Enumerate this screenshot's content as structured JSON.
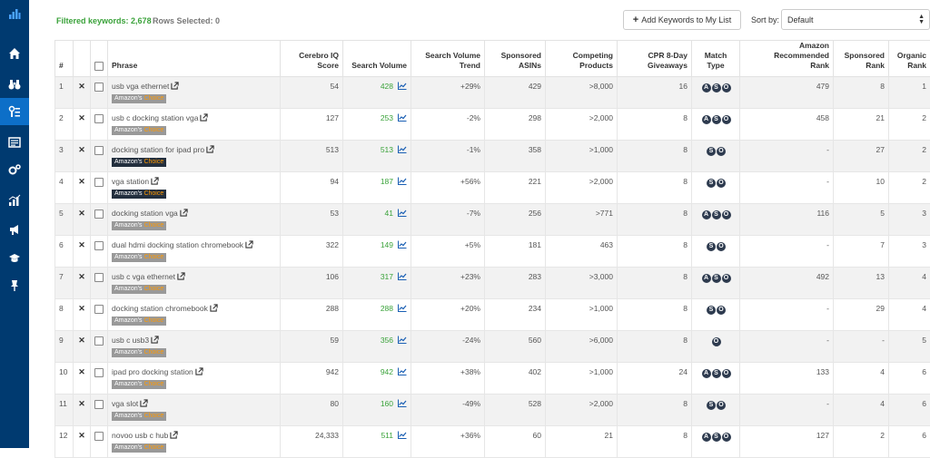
{
  "summary": {
    "filtered_label": "Filtered keywords:",
    "filtered_count": "2,678",
    "rows_selected_label": "Rows Selected:",
    "rows_selected_count": "0"
  },
  "toolbar": {
    "add_keywords_label": "Add Keywords to My List",
    "sort_label": "Sort by:",
    "sort_value": "Default"
  },
  "table": {
    "headers": {
      "num": "#",
      "phrase": "Phrase",
      "cerebro_line1": "Cerebro IQ",
      "cerebro_line2": "Score",
      "search_volume": "Search Volume",
      "trend_line1": "Search Volume",
      "trend_line2": "Trend",
      "sponsored_asins_line1": "Sponsored",
      "sponsored_asins_line2": "ASINs",
      "competing_line1": "Competing",
      "competing_line2": "Products",
      "cpr_line1": "CPR 8-Day",
      "cpr_line2": "Giveaways",
      "match_line1": "Match",
      "match_line2": "Type",
      "amazon_rank_line1": "Amazon Recommended",
      "amazon_rank_line2": "Rank",
      "sponsored_rank_line1": "Sponsored",
      "sponsored_rank_line2": "Rank",
      "organic_line1": "Organic",
      "organic_line2": "Rank"
    },
    "badge_prefix": "Amazon's",
    "badge_suffix": "Choice",
    "rows": [
      {
        "num": "1",
        "phrase": "usb vga ethernet",
        "badge": "gray",
        "cerebro": "54",
        "volume": "428",
        "trend": "+29%",
        "trend_dir": "pos",
        "sponsored_asins": "429",
        "competing": ">8,000",
        "cpr": "16",
        "match": [
          "A",
          "S",
          "O"
        ],
        "amazon_rank": "479",
        "sponsored_rank": "8",
        "organic_rank": "1"
      },
      {
        "num": "2",
        "phrase": "usb c docking station vga",
        "badge": "gray",
        "cerebro": "127",
        "volume": "253",
        "trend": "-2%",
        "trend_dir": "neg",
        "sponsored_asins": "298",
        "competing": ">2,000",
        "cpr": "8",
        "match": [
          "A",
          "S",
          "O"
        ],
        "amazon_rank": "458",
        "sponsored_rank": "21",
        "organic_rank": "2"
      },
      {
        "num": "3",
        "phrase": "docking station for ipad pro",
        "badge": "dark",
        "cerebro": "513",
        "volume": "513",
        "trend": "-1%",
        "trend_dir": "neg",
        "sponsored_asins": "358",
        "competing": ">1,000",
        "cpr": "8",
        "match": [
          "S",
          "O"
        ],
        "amazon_rank": "-",
        "sponsored_rank": "27",
        "organic_rank": "2"
      },
      {
        "num": "4",
        "phrase": "vga station",
        "badge": "dark",
        "cerebro": "94",
        "volume": "187",
        "trend": "+56%",
        "trend_dir": "pos",
        "sponsored_asins": "221",
        "competing": ">2,000",
        "cpr": "8",
        "match": [
          "S",
          "O"
        ],
        "amazon_rank": "-",
        "sponsored_rank": "10",
        "organic_rank": "2"
      },
      {
        "num": "5",
        "phrase": "docking station vga",
        "badge": "gray",
        "cerebro": "53",
        "volume": "41",
        "trend": "-7%",
        "trend_dir": "neg",
        "sponsored_asins": "256",
        "competing": ">771",
        "cpr": "8",
        "match": [
          "A",
          "S",
          "O"
        ],
        "amazon_rank": "116",
        "sponsored_rank": "5",
        "organic_rank": "3"
      },
      {
        "num": "6",
        "phrase": "dual hdmi docking station chromebook",
        "badge": "gray",
        "cerebro": "322",
        "volume": "149",
        "trend": "+5%",
        "trend_dir": "pos",
        "sponsored_asins": "181",
        "competing": "463",
        "cpr": "8",
        "match": [
          "S",
          "O"
        ],
        "amazon_rank": "-",
        "sponsored_rank": "7",
        "organic_rank": "3"
      },
      {
        "num": "7",
        "phrase": "usb c vga ethernet",
        "badge": "gray",
        "cerebro": "106",
        "volume": "317",
        "trend": "+23%",
        "trend_dir": "pos",
        "sponsored_asins": "283",
        "competing": ">3,000",
        "cpr": "8",
        "match": [
          "A",
          "S",
          "O"
        ],
        "amazon_rank": "492",
        "sponsored_rank": "13",
        "organic_rank": "4"
      },
      {
        "num": "8",
        "phrase": "docking station chromebook",
        "badge": "gray",
        "cerebro": "288",
        "volume": "288",
        "trend": "+20%",
        "trend_dir": "pos",
        "sponsored_asins": "234",
        "competing": ">1,000",
        "cpr": "8",
        "match": [
          "S",
          "O"
        ],
        "amazon_rank": "-",
        "sponsored_rank": "29",
        "organic_rank": "4"
      },
      {
        "num": "9",
        "phrase": "usb c usb3",
        "badge": "gray",
        "cerebro": "59",
        "volume": "356",
        "trend": "-24%",
        "trend_dir": "neg",
        "sponsored_asins": "560",
        "competing": ">6,000",
        "cpr": "8",
        "match": [
          "O"
        ],
        "amazon_rank": "-",
        "sponsored_rank": "-",
        "organic_rank": "5"
      },
      {
        "num": "10",
        "phrase": "ipad pro docking station",
        "badge": "gray",
        "cerebro": "942",
        "volume": "942",
        "trend": "+38%",
        "trend_dir": "pos",
        "sponsored_asins": "402",
        "competing": ">1,000",
        "cpr": "24",
        "match": [
          "A",
          "S",
          "O"
        ],
        "amazon_rank": "133",
        "sponsored_rank": "4",
        "organic_rank": "6"
      },
      {
        "num": "11",
        "phrase": "vga slot",
        "badge": "gray",
        "cerebro": "80",
        "volume": "160",
        "trend": "-49%",
        "trend_dir": "neg",
        "sponsored_asins": "528",
        "competing": ">2,000",
        "cpr": "8",
        "match": [
          "S",
          "O"
        ],
        "amazon_rank": "-",
        "sponsored_rank": "4",
        "organic_rank": "6"
      },
      {
        "num": "12",
        "phrase": "novoo usb c hub",
        "badge": "gray",
        "cerebro": "24,333",
        "volume": "511",
        "trend": "+36%",
        "trend_dir": "pos",
        "sponsored_asins": "60",
        "competing": "21",
        "cpr": "8",
        "match": [
          "A",
          "S",
          "O"
        ],
        "amazon_rank": "127",
        "sponsored_rank": "2",
        "organic_rank": "6"
      }
    ]
  },
  "sidebar": {
    "items": [
      {
        "icon": "bar-chart-logo-icon"
      },
      {
        "icon": "home-icon"
      },
      {
        "icon": "binoculars-icon"
      },
      {
        "icon": "keyword-research-icon"
      },
      {
        "icon": "listing-icon"
      },
      {
        "icon": "gears-icon"
      },
      {
        "icon": "analytics-icon"
      },
      {
        "icon": "megaphone-icon"
      },
      {
        "icon": "graduation-cap-icon"
      },
      {
        "icon": "pin-icon"
      }
    ]
  },
  "colors": {
    "sidebar_bg": "#003a70",
    "sidebar_active": "#0d6fc8",
    "positive": "#3aa23a",
    "negative": "#e0433a",
    "badge_gray": "#999999",
    "badge_dark": "#232f3e",
    "choice_orange": "#ff9900",
    "match_circle": "#2e3b4f"
  }
}
